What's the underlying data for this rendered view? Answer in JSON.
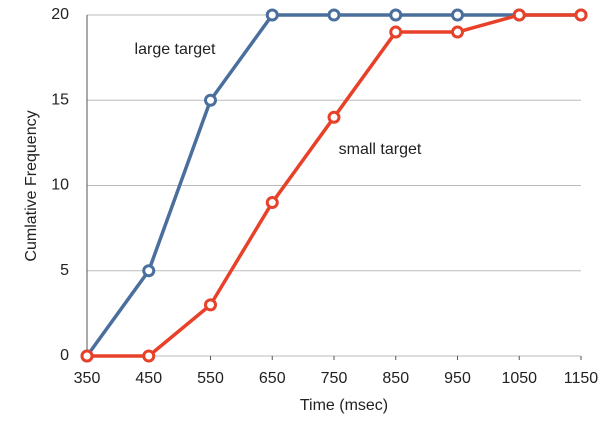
{
  "chart_data": {
    "type": "line",
    "xlabel": "Time (msec)",
    "ylabel": "Cumlative Frequency",
    "x": [
      350,
      450,
      550,
      650,
      750,
      850,
      950,
      1050,
      1150
    ],
    "series": [
      {
        "name": "large target",
        "color": "#4a6f9c",
        "values": [
          0,
          5,
          15,
          20,
          20,
          20,
          20,
          20,
          20
        ]
      },
      {
        "name": "small target",
        "color": "#e8412a",
        "values": [
          0,
          0,
          3,
          9,
          14,
          19,
          19,
          20,
          20
        ]
      }
    ],
    "xlim": [
      350,
      1150
    ],
    "xticks": [
      350,
      450,
      550,
      650,
      750,
      850,
      950,
      1050,
      1150
    ],
    "ylim": [
      0,
      20
    ],
    "yticks": [
      0,
      5,
      10,
      15,
      20
    ],
    "grid": true
  }
}
